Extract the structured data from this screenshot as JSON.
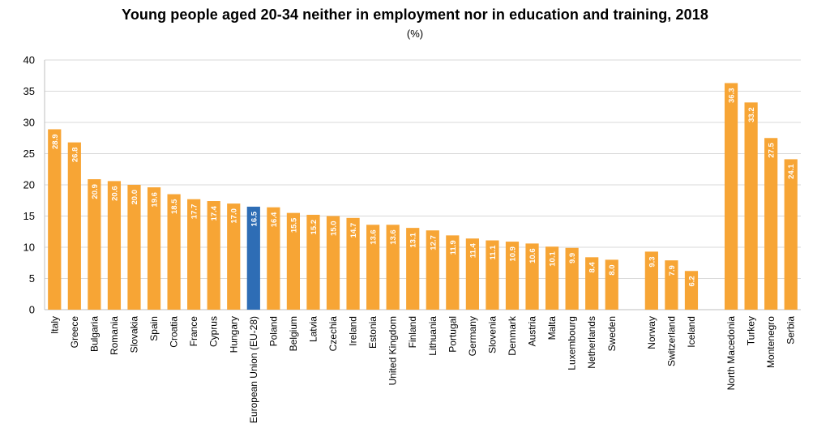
{
  "chart_data": {
    "type": "bar",
    "title": "Young people aged 20-34 neither in employment nor in education and training, 2018",
    "subtitle": "(%)",
    "ylim": [
      0,
      40
    ],
    "yticks": [
      0,
      5,
      10,
      15,
      20,
      25,
      30,
      35,
      40
    ],
    "grid": true,
    "colors": {
      "default": "#f7a535",
      "highlight": "#2e6db5",
      "grid": "#d9d9d9"
    },
    "categories": [
      "Italy",
      "Greece",
      "Bulgaria",
      "Romania",
      "Slovakia",
      "Spain",
      "Croatia",
      "France",
      "Cyprus",
      "Hungary",
      "European Union (EU-28)",
      "Poland",
      "Belgium",
      "Latvia",
      "Czechia",
      "Ireland",
      "Estonia",
      "United Kingdom",
      "Finland",
      "Lithuania",
      "Portugal",
      "Germany",
      "Slovenia",
      "Denmark",
      "Austria",
      "Malta",
      "Luxembourg",
      "Netherlands",
      "Sweden",
      "",
      "Norway",
      "Switzerland",
      "Iceland",
      "",
      "North Macedonia",
      "Turkey",
      "Montenegro",
      "Serbia"
    ],
    "values": [
      28.9,
      26.8,
      20.9,
      20.6,
      20.0,
      19.6,
      18.5,
      17.7,
      17.4,
      17.0,
      16.5,
      16.4,
      15.5,
      15.2,
      15.0,
      14.7,
      13.6,
      13.6,
      13.1,
      12.7,
      11.9,
      11.4,
      11.1,
      10.9,
      10.6,
      10.1,
      9.9,
      8.4,
      8.0,
      null,
      9.3,
      7.9,
      6.2,
      null,
      36.3,
      33.2,
      27.5,
      24.1
    ],
    "labels": [
      "28.9",
      "26.8",
      "20.9",
      "20.6",
      "20.0",
      "19.6",
      "18.5",
      "17.7",
      "17.4",
      "17.0",
      "16.5",
      "16.4",
      "15.5",
      "15.2",
      "15.0",
      "14.7",
      "13.6",
      "13.6",
      "13.1",
      "12.7",
      "11.9",
      "11.4",
      "11.1",
      "10.9",
      "10.6",
      "10.1",
      "9.9",
      "8.4",
      "8.0",
      "",
      "9.3",
      "7.9",
      "6.2",
      "",
      "36.3",
      "33.2",
      "27.5",
      "24.1"
    ],
    "highlight": "European Union (EU-28)"
  }
}
